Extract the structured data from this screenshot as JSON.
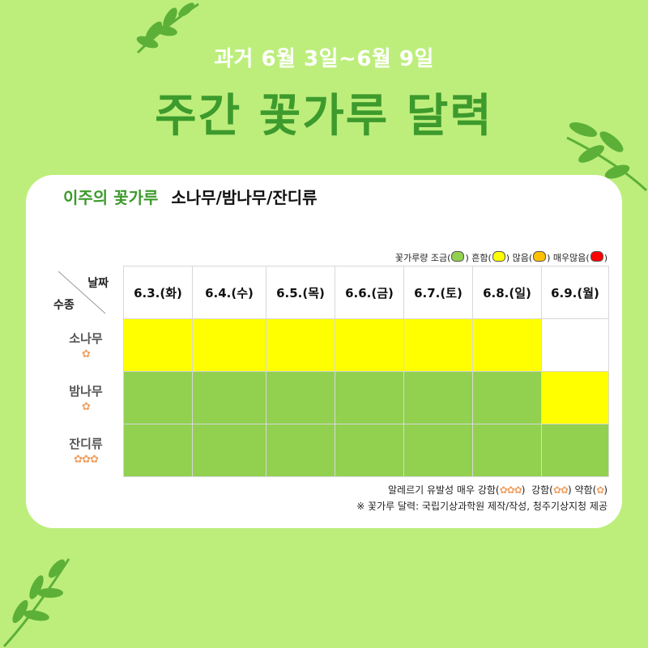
{
  "header": {
    "subtitle": "과거 6월 3일~6월 9일",
    "title": "주간 꽃가루 달력"
  },
  "card": {
    "heading_highlight": "이주의 꽃가루",
    "heading_plants": "소나무/밤나무/잔디류",
    "legend": {
      "label": "꽃가루량",
      "items": [
        {
          "label": "조금",
          "color": "#92d050"
        },
        {
          "label": "흔함",
          "color": "#ffff00"
        },
        {
          "label": "많음",
          "color": "#ffc000"
        },
        {
          "label": "매우많음",
          "color": "#ff0000"
        }
      ]
    },
    "table": {
      "corner_date_label": "날짜",
      "corner_kind_label": "수종",
      "dates": [
        "6.3.(화)",
        "6.4.(수)",
        "6.5.(목)",
        "6.6.(금)",
        "6.7.(토)",
        "6.8.(일)",
        "6.9.(월)"
      ],
      "rows": [
        {
          "name": "소나무",
          "flowers": "✿",
          "levels": [
            "흔함",
            "흔함",
            "흔함",
            "흔함",
            "흔함",
            "흔함",
            "없음"
          ]
        },
        {
          "name": "밤나무",
          "flowers": "✿",
          "levels": [
            "조금",
            "조금",
            "조금",
            "조금",
            "조금",
            "조금",
            "흔함"
          ]
        },
        {
          "name": "잔디류",
          "flowers": "✿✿✿",
          "levels": [
            "조금",
            "조금",
            "조금",
            "조금",
            "조금",
            "조금",
            "조금"
          ]
        }
      ]
    },
    "footer": {
      "allergy_label": "알레르기 유발성",
      "very_strong": "매우 강함",
      "very_strong_flowers": "✿✿✿",
      "strong": "강함",
      "strong_flowers": "✿✿",
      "weak": "약함",
      "weak_flowers": "✿",
      "source": "※ 꽃가루 달력: 국립기상과학원 제작/작성, 청주기상지청 제공"
    }
  }
}
